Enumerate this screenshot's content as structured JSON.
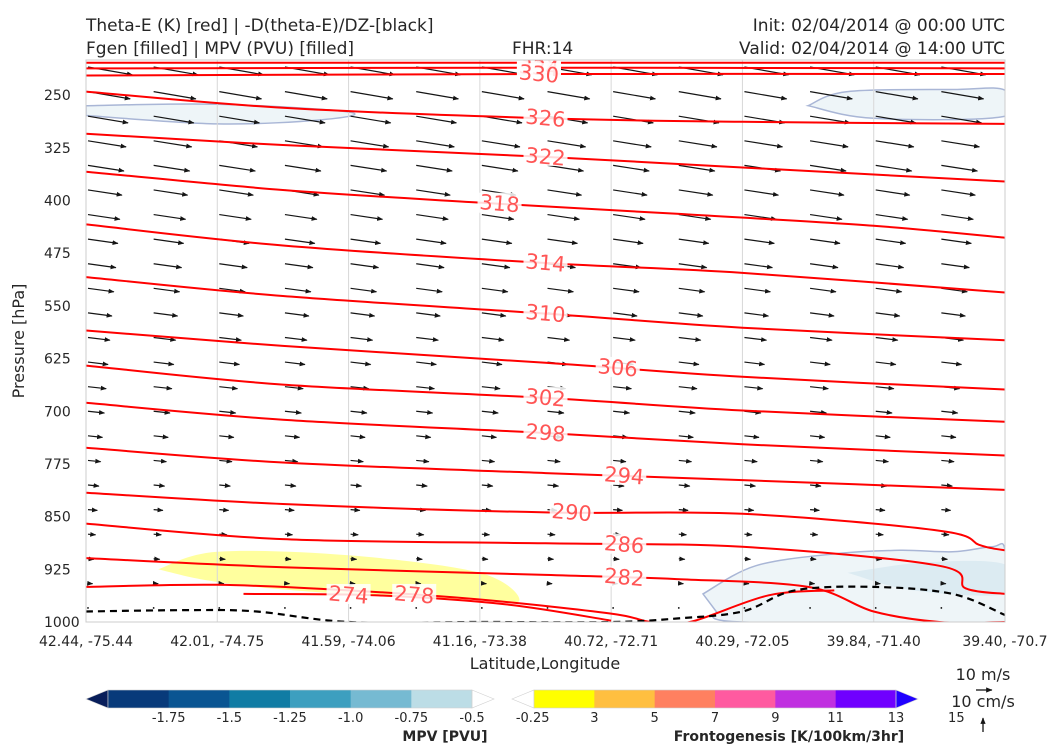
{
  "header": {
    "line1_left": "Theta-E (K) [red] | -D(theta-E)/DZ-[black]",
    "line2_left": "Fgen [filled] | MPV (PVU) [filled]",
    "fhr": "FHR:14",
    "init": "Init: 02/04/2014 @ 00:00 UTC",
    "valid": "Valid: 02/04/2014 @ 14:00 UTC"
  },
  "chart_data": {
    "type": "cross-section",
    "ylabel": "Pressure [hPa]",
    "xlabel": "Latitude,Longitude",
    "y_axis": {
      "scale": "linear",
      "inverted": true,
      "ylim": [
        1000,
        200
      ],
      "ticks": [
        250,
        325,
        400,
        475,
        550,
        625,
        700,
        775,
        850,
        925,
        1000
      ]
    },
    "x_ticks": [
      "42.44, -75.44",
      "42.01, -74.75",
      "41.59, -74.06",
      "41.16, -73.38",
      "40.72, -72.71",
      "40.29, -72.05",
      "39.84, -71.40",
      "39.40, -70.7"
    ],
    "theta_e_color": "#ff0000",
    "theta_e_label_color": "#ff5555",
    "theta_e_contours": [
      {
        "level": 338,
        "label": "338",
        "x": [
          0,
          7
        ],
        "y": [
          204,
          204
        ]
      },
      {
        "level": 334,
        "label": "334",
        "x": [
          0,
          3.5,
          7
        ],
        "y": [
          212,
          211,
          212
        ]
      },
      {
        "level": 330,
        "label": "330",
        "x": [
          0,
          3.5,
          7
        ],
        "y": [
          222,
          220,
          220
        ]
      },
      {
        "level": 326,
        "label": "326",
        "x": [
          0,
          1.5,
          3.5,
          5,
          7
        ],
        "y": [
          245,
          268,
          283,
          288,
          291
        ]
      },
      {
        "level": 322,
        "label": "322",
        "x": [
          0,
          1.5,
          3.5,
          5,
          7
        ],
        "y": [
          305,
          321,
          338,
          353,
          373
        ]
      },
      {
        "level": 318,
        "label": "318",
        "x": [
          0,
          1.5,
          3,
          4.5,
          6,
          7
        ],
        "y": [
          359,
          385,
          403,
          419,
          436,
          453
        ]
      },
      {
        "level": 314,
        "label": "314",
        "x": [
          0,
          1.5,
          3.5,
          5,
          7
        ],
        "y": [
          434,
          464,
          489,
          503,
          531
        ]
      },
      {
        "level": 310,
        "label": "310",
        "x": [
          0,
          1.5,
          3.5,
          5,
          7
        ],
        "y": [
          509,
          536,
          561,
          581,
          599
        ]
      },
      {
        "level": 306,
        "label": "306",
        "x": [
          0,
          1.5,
          3.5,
          5,
          7
        ],
        "y": [
          585,
          607,
          631,
          651,
          669
        ]
      },
      {
        "level": 302,
        "label": "302",
        "x": [
          0,
          1.5,
          3.5,
          5,
          7
        ],
        "y": [
          635,
          662,
          681,
          699,
          715
        ]
      },
      {
        "level": 298,
        "label": "298",
        "x": [
          0,
          1.5,
          3.5,
          5,
          7
        ],
        "y": [
          688,
          712,
          731,
          747,
          763
        ]
      },
      {
        "level": 294,
        "label": "294",
        "x": [
          0,
          1.5,
          3.5,
          5,
          7
        ],
        "y": [
          752,
          773,
          788,
          798,
          812
        ]
      },
      {
        "level": 290,
        "label": "290",
        "x": [
          0,
          1.5,
          3.5,
          5,
          6.5,
          6.8,
          6.9,
          7
        ],
        "y": [
          816,
          832,
          844,
          846,
          870,
          890,
          895,
          898
        ]
      },
      {
        "level": 286,
        "label": "286",
        "x": [
          0,
          1.5,
          3.5,
          5,
          6.5,
          6.7,
          7
        ],
        "y": [
          860,
          882,
          888,
          893,
          920,
          952,
          960
        ]
      },
      {
        "level": 282,
        "label": "282",
        "x": [
          0,
          1.5,
          3.5,
          4.5,
          5.5,
          6,
          6.5,
          7
        ],
        "y": [
          909,
          922,
          933,
          939,
          950,
          985,
          1000,
          1000
        ]
      },
      {
        "level": 278,
        "label": "278",
        "x": [
          0,
          1,
          2,
          3,
          4,
          4.3,
          4.6,
          5.2,
          5.7
        ],
        "y": [
          950,
          947,
          955,
          968,
          988,
          1000,
          1000,
          962,
          955
        ]
      },
      {
        "level": 274,
        "label": "274",
        "x": [
          1.2,
          2.2,
          3.2,
          4
        ],
        "y": [
          960,
          962,
          975,
          998
        ]
      }
    ],
    "mpv_regions": [
      {
        "x": [
          0,
          1,
          2,
          1.8,
          1,
          0
        ],
        "y": [
          265,
          263,
          274,
          285,
          291,
          279
        ]
      },
      {
        "x": [
          5.5,
          5.8,
          6.6,
          7,
          7,
          6,
          5.5
        ],
        "y": [
          265,
          245,
          242,
          243,
          280,
          283,
          265
        ]
      },
      {
        "x": [
          4.7,
          5.1,
          5.7,
          6.2,
          6.6,
          6.9,
          7,
          7,
          5,
          4.8
        ],
        "y": [
          960,
          920,
          903,
          898,
          900,
          893,
          898,
          1000,
          1000,
          985
        ]
      }
    ],
    "frontogenesis_regions": [
      {
        "x": [
          0.55,
          1,
          2,
          3,
          3.3,
          2.9,
          2.2,
          1.4,
          0.9,
          0.55
        ],
        "y": [
          925,
          900,
          905,
          930,
          970,
          968,
          963,
          952,
          940,
          925
        ]
      }
    ],
    "wind_barbs": "vector arrows, ~10 m/s near top decreasing to calm near surface",
    "dashed_line": {
      "x": [
        0,
        0.8,
        1.3,
        2,
        3,
        4,
        4.5,
        5.0,
        5.4,
        6,
        6.6,
        7
      ],
      "y": [
        985,
        983,
        985,
        1000,
        1000,
        1000,
        995,
        985,
        955,
        950,
        960,
        990
      ]
    },
    "mpv_colorbar": {
      "label": "MPV [PVU]",
      "ticks": [
        "-1.75",
        "-1.5",
        "-1.25",
        "-1.0",
        "-0.75",
        "-0.5",
        "-0.25"
      ],
      "colors": [
        "#081e5a",
        "#083a7a",
        "#0a5592",
        "#107ca4",
        "#3d9fbf",
        "#76bad2",
        "#bcdde6",
        "#ffffff"
      ]
    },
    "fgen_colorbar": {
      "label": "Frontogenesis [K/100km/3hr]",
      "ticks": [
        "3",
        "5",
        "7",
        "9",
        "11",
        "13",
        "15"
      ],
      "colors": [
        "#ffffff",
        "#ffff00",
        "#ffbf40",
        "#ff8060",
        "#ff5aa0",
        "#c030e0",
        "#7000ff",
        "#2000ff"
      ]
    }
  },
  "wind_key": {
    "label_top": "10 m/s",
    "label_bottom": "10 cm/s"
  }
}
